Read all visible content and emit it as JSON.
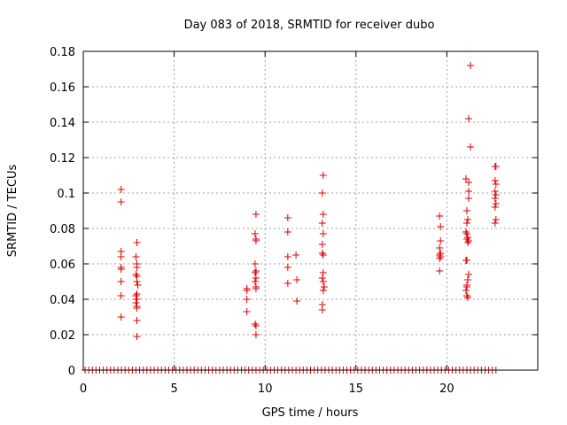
{
  "chart_data": {
    "type": "scatter",
    "title": "Day 083 of 2018, SRMTID for receiver dubo",
    "xlabel": "GPS time / hours",
    "ylabel": "SRMTID / TECUs",
    "xlim": [
      0,
      25
    ],
    "ylim": [
      0,
      0.18
    ],
    "xticks": [
      0,
      5,
      10,
      15,
      20
    ],
    "xtick_labels": [
      "0",
      "5",
      "10",
      "15",
      "20"
    ],
    "yticks": [
      0,
      0.02,
      0.04,
      0.06,
      0.08,
      0.1,
      0.12,
      0.14,
      0.16,
      0.18
    ],
    "ytick_labels": [
      "0",
      "0.02",
      "0.04",
      "0.06",
      "0.08",
      "0.1",
      "0.12",
      "0.14",
      "0.16",
      "0.18"
    ],
    "grid": true,
    "marker": "+",
    "marker_color": "#e00000",
    "series": [
      {
        "name": "SRMTID",
        "points": [
          [
            2.08,
            0.102
          ],
          [
            2.08,
            0.095
          ],
          [
            2.08,
            0.067
          ],
          [
            2.08,
            0.064
          ],
          [
            2.08,
            0.058
          ],
          [
            2.08,
            0.057
          ],
          [
            2.08,
            0.05
          ],
          [
            2.08,
            0.042
          ],
          [
            2.08,
            0.03
          ],
          [
            2.95,
            0.072
          ],
          [
            2.9,
            0.064
          ],
          [
            2.95,
            0.06
          ],
          [
            2.95,
            0.058
          ],
          [
            2.9,
            0.054
          ],
          [
            2.95,
            0.053
          ],
          [
            2.95,
            0.05
          ],
          [
            3.0,
            0.048
          ],
          [
            2.95,
            0.043
          ],
          [
            2.9,
            0.042
          ],
          [
            2.95,
            0.04
          ],
          [
            2.9,
            0.038
          ],
          [
            2.95,
            0.036
          ],
          [
            2.95,
            0.035
          ],
          [
            2.95,
            0.028
          ],
          [
            2.95,
            0.019
          ],
          [
            9.0,
            0.046
          ],
          [
            9.0,
            0.045
          ],
          [
            9.0,
            0.04
          ],
          [
            9.0,
            0.033
          ],
          [
            9.5,
            0.088
          ],
          [
            9.45,
            0.077
          ],
          [
            9.5,
            0.074
          ],
          [
            9.5,
            0.073
          ],
          [
            9.45,
            0.06
          ],
          [
            9.5,
            0.056
          ],
          [
            9.45,
            0.055
          ],
          [
            9.5,
            0.052
          ],
          [
            9.45,
            0.05
          ],
          [
            9.5,
            0.047
          ],
          [
            9.5,
            0.046
          ],
          [
            9.45,
            0.026
          ],
          [
            9.5,
            0.025
          ],
          [
            9.5,
            0.02
          ],
          [
            11.25,
            0.086
          ],
          [
            11.25,
            0.078
          ],
          [
            11.25,
            0.064
          ],
          [
            11.25,
            0.058
          ],
          [
            11.25,
            0.049
          ],
          [
            11.7,
            0.065
          ],
          [
            11.75,
            0.051
          ],
          [
            11.75,
            0.039
          ],
          [
            13.2,
            0.11
          ],
          [
            13.15,
            0.1
          ],
          [
            13.2,
            0.088
          ],
          [
            13.15,
            0.083
          ],
          [
            13.2,
            0.077
          ],
          [
            13.15,
            0.071
          ],
          [
            13.15,
            0.066
          ],
          [
            13.2,
            0.065
          ],
          [
            13.2,
            0.055
          ],
          [
            13.15,
            0.052
          ],
          [
            13.2,
            0.05
          ],
          [
            13.25,
            0.047
          ],
          [
            13.2,
            0.045
          ],
          [
            13.15,
            0.037
          ],
          [
            13.15,
            0.034
          ],
          [
            19.6,
            0.087
          ],
          [
            19.65,
            0.081
          ],
          [
            19.65,
            0.073
          ],
          [
            19.6,
            0.069
          ],
          [
            19.65,
            0.066
          ],
          [
            19.6,
            0.065
          ],
          [
            19.65,
            0.064
          ],
          [
            19.6,
            0.063
          ],
          [
            19.6,
            0.056
          ],
          [
            21.3,
            0.172
          ],
          [
            21.2,
            0.142
          ],
          [
            21.3,
            0.126
          ],
          [
            21.05,
            0.108
          ],
          [
            21.2,
            0.106
          ],
          [
            21.2,
            0.101
          ],
          [
            21.2,
            0.097
          ],
          [
            21.1,
            0.09
          ],
          [
            21.15,
            0.085
          ],
          [
            21.1,
            0.083
          ],
          [
            21.05,
            0.078
          ],
          [
            21.1,
            0.077
          ],
          [
            21.15,
            0.075
          ],
          [
            21.1,
            0.074
          ],
          [
            21.2,
            0.073
          ],
          [
            21.15,
            0.072
          ],
          [
            21.05,
            0.062
          ],
          [
            21.1,
            0.062
          ],
          [
            21.2,
            0.054
          ],
          [
            21.15,
            0.051
          ],
          [
            21.1,
            0.048
          ],
          [
            21.1,
            0.047
          ],
          [
            21.05,
            0.045
          ],
          [
            21.1,
            0.042
          ],
          [
            21.15,
            0.041
          ],
          [
            22.65,
            0.115
          ],
          [
            22.7,
            0.115
          ],
          [
            22.65,
            0.107
          ],
          [
            22.7,
            0.105
          ],
          [
            22.65,
            0.101
          ],
          [
            22.7,
            0.099
          ],
          [
            22.65,
            0.097
          ],
          [
            22.7,
            0.094
          ],
          [
            22.65,
            0.092
          ],
          [
            22.7,
            0.085
          ],
          [
            22.65,
            0.083
          ]
        ],
        "zero_points_x": [
          0.1,
          0.3,
          0.5,
          0.7,
          0.9,
          1.1,
          1.3,
          1.5,
          1.7,
          1.9,
          2.1,
          2.3,
          2.5,
          2.7,
          2.9,
          3.1,
          3.3,
          3.5,
          3.7,
          3.9,
          4.1,
          4.3,
          4.5,
          4.7,
          4.9,
          5.1,
          5.3,
          5.5,
          5.7,
          5.9,
          6.1,
          6.3,
          6.5,
          6.7,
          6.9,
          7.1,
          7.3,
          7.5,
          7.7,
          7.9,
          8.1,
          8.3,
          8.5,
          8.7,
          8.9,
          9.1,
          9.3,
          9.5,
          9.7,
          9.9,
          10.1,
          10.3,
          10.5,
          10.7,
          10.9,
          11.1,
          11.3,
          11.5,
          11.7,
          11.9,
          12.1,
          12.3,
          12.5,
          12.7,
          12.9,
          13.1,
          13.3,
          13.5,
          13.7,
          13.9,
          14.1,
          14.3,
          14.5,
          14.7,
          14.9,
          15.1,
          15.3,
          15.5,
          15.7,
          15.9,
          16.1,
          16.3,
          16.5,
          16.7,
          16.9,
          17.1,
          17.3,
          17.5,
          17.7,
          17.9,
          18.1,
          18.3,
          18.5,
          18.7,
          18.9,
          19.1,
          19.3,
          19.5,
          19.7,
          19.9,
          20.1,
          20.3,
          20.5,
          20.7,
          20.9,
          21.1,
          21.3,
          21.5,
          21.7,
          21.9,
          22.1,
          22.3,
          22.5,
          22.7
        ]
      }
    ]
  }
}
